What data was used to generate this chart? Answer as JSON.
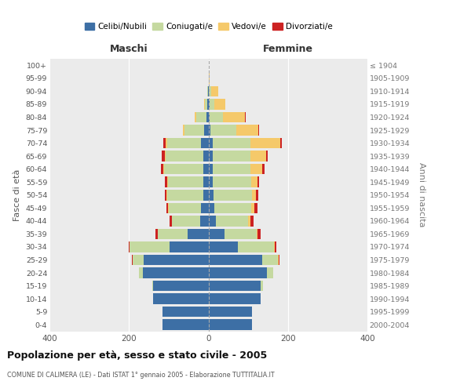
{
  "age_groups": [
    "0-4",
    "5-9",
    "10-14",
    "15-19",
    "20-24",
    "25-29",
    "30-34",
    "35-39",
    "40-44",
    "45-49",
    "50-54",
    "55-59",
    "60-64",
    "65-69",
    "70-74",
    "75-79",
    "80-84",
    "85-89",
    "90-94",
    "95-99",
    "100+"
  ],
  "birth_years": [
    "2000-2004",
    "1995-1999",
    "1990-1994",
    "1985-1989",
    "1980-1984",
    "1975-1979",
    "1970-1974",
    "1965-1969",
    "1960-1964",
    "1955-1959",
    "1950-1954",
    "1945-1949",
    "1940-1944",
    "1935-1939",
    "1930-1934",
    "1925-1929",
    "1920-1924",
    "1915-1919",
    "1910-1914",
    "1905-1909",
    "≤ 1904"
  ],
  "maschi": {
    "celibi": [
      115,
      115,
      140,
      140,
      165,
      162,
      98,
      52,
      20,
      18,
      12,
      12,
      12,
      12,
      18,
      10,
      5,
      3,
      1,
      0,
      0
    ],
    "coniugati": [
      0,
      0,
      0,
      2,
      10,
      28,
      100,
      76,
      72,
      82,
      92,
      90,
      100,
      95,
      85,
      50,
      25,
      5,
      2,
      0,
      0
    ],
    "vedovi": [
      0,
      0,
      0,
      0,
      0,
      0,
      0,
      0,
      0,
      1,
      1,
      2,
      2,
      3,
      5,
      5,
      5,
      2,
      0,
      0,
      0
    ],
    "divorziati": [
      0,
      0,
      0,
      0,
      0,
      2,
      2,
      5,
      5,
      5,
      5,
      5,
      5,
      8,
      5,
      0,
      0,
      0,
      0,
      0,
      0
    ]
  },
  "femmine": {
    "nubili": [
      110,
      110,
      132,
      132,
      148,
      135,
      75,
      40,
      18,
      15,
      12,
      10,
      10,
      10,
      10,
      5,
      2,
      2,
      1,
      0,
      0
    ],
    "coniugate": [
      0,
      0,
      0,
      5,
      15,
      40,
      90,
      82,
      82,
      92,
      98,
      98,
      95,
      95,
      95,
      65,
      35,
      12,
      5,
      1,
      0
    ],
    "vedove": [
      0,
      0,
      0,
      0,
      0,
      2,
      2,
      2,
      5,
      8,
      10,
      15,
      30,
      40,
      75,
      55,
      55,
      28,
      18,
      2,
      0
    ],
    "divorziate": [
      0,
      0,
      0,
      0,
      0,
      2,
      3,
      8,
      8,
      8,
      6,
      5,
      6,
      5,
      5,
      2,
      2,
      0,
      0,
      0,
      0
    ]
  },
  "colors": {
    "celibi": "#3d6fa5",
    "coniugati": "#c5d9a0",
    "vedovi": "#f5c96a",
    "divorziati": "#cc2222"
  },
  "title": "Popolazione per età, sesso e stato civile - 2005",
  "subtitle": "COMUNE DI CALIMERA (LE) - Dati ISTAT 1° gennaio 2005 - Elaborazione TUTTITALIA.IT",
  "ylabel_left": "Fasce di età",
  "ylabel_right": "Anni di nascita",
  "xlabel_maschi": "Maschi",
  "xlabel_femmine": "Femmine",
  "xlim": 400,
  "legend_labels": [
    "Celibi/Nubili",
    "Coniugati/e",
    "Vedovi/e",
    "Divorziati/e"
  ],
  "background_color": "#ffffff",
  "plot_bg_color": "#ebebeb",
  "grid_color": "#ffffff"
}
